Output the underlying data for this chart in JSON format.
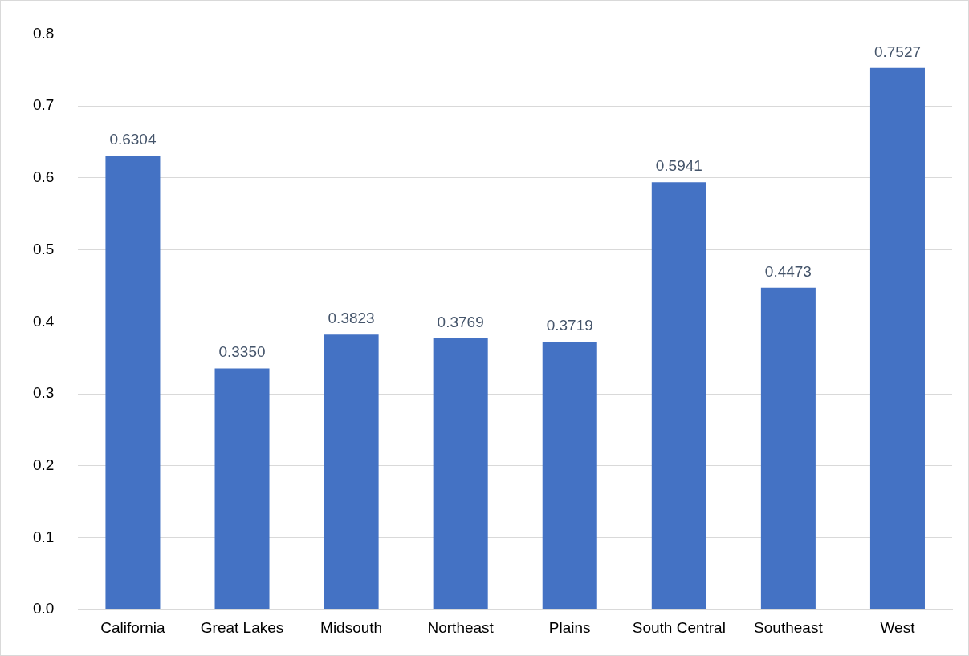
{
  "chart_data": {
    "type": "bar",
    "categories": [
      "California",
      "Great Lakes",
      "Midsouth",
      "Northeast",
      "Plains",
      "South Central",
      "Southeast",
      "West"
    ],
    "values": [
      0.6304,
      0.335,
      0.3823,
      0.3769,
      0.3719,
      0.5941,
      0.4473,
      0.7527
    ],
    "value_labels": [
      "0.6304",
      "0.3350",
      "0.3823",
      "0.3769",
      "0.3719",
      "0.5941",
      "0.4473",
      "0.7527"
    ],
    "color": "#4472c4",
    "ylim": [
      0,
      0.8
    ],
    "yticks": [
      {
        "value": 0,
        "label": "0.0"
      },
      0.1,
      0.2,
      0.3,
      0.4,
      0.5,
      0.6,
      0.7,
      0.8
    ],
    "grid": "y",
    "legend": false
  }
}
